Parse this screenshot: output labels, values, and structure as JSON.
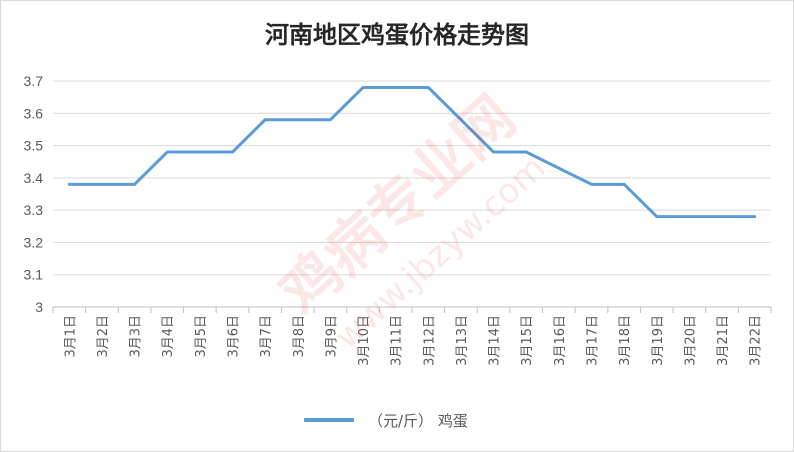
{
  "chart_data": {
    "type": "line",
    "title": "河南地区鸡蛋价格走势图",
    "xlabel": "",
    "ylabel": "",
    "categories": [
      "3月1日",
      "3月2日",
      "3月3日",
      "3月4日",
      "3月5日",
      "3月6日",
      "3月7日",
      "3月8日",
      "3月9日",
      "3月10日",
      "3月11日",
      "3月12日",
      "3月13日",
      "3月14日",
      "3月15日",
      "3月16日",
      "3月17日",
      "3月18日",
      "3月19日",
      "3月20日",
      "3月21日",
      "3月22日"
    ],
    "series": [
      {
        "name": "（元/斤） 鸡蛋",
        "color": "#5b9bd5",
        "values": [
          3.38,
          3.38,
          3.38,
          3.48,
          3.48,
          3.48,
          3.58,
          3.58,
          3.58,
          3.68,
          3.68,
          3.68,
          3.58,
          3.48,
          3.48,
          3.43,
          3.38,
          3.38,
          3.28,
          3.28,
          3.28,
          3.28
        ]
      }
    ],
    "ylim": [
      3,
      3.7
    ],
    "yticks": [
      "3",
      "3.1",
      "3.2",
      "3.3",
      "3.4",
      "3.5",
      "3.6",
      "3.7"
    ],
    "grid": true,
    "legend": "bottom"
  },
  "watermark": {
    "brand": "鸡病专业网",
    "url": "www.jbzyw.com",
    "color": "#e8312c"
  }
}
